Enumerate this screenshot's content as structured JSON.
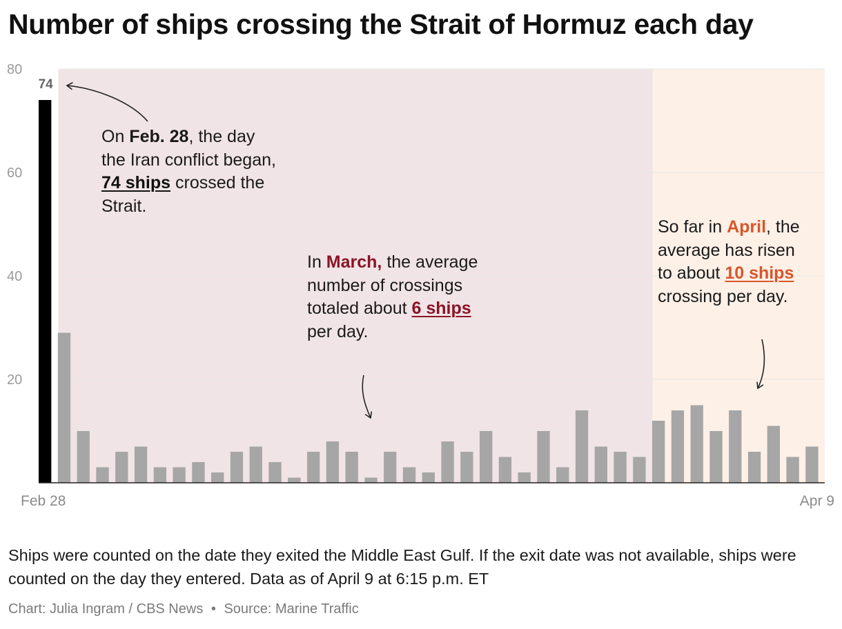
{
  "title": "Number of ships crossing the Strait of Hormuz each day",
  "annotations": {
    "feb": {
      "t1": "On ",
      "b1": "Feb. 28",
      "t2": ", the day the Iran conflict began, ",
      "b2": "74 ships",
      "t3": " crossed the Strait."
    },
    "march": {
      "t1": "In ",
      "b1": "March,",
      "t2": " the average number of crossings totaled about ",
      "b2": "6 ships",
      "t3": " per day."
    },
    "april": {
      "t1": "So far in ",
      "b1": "April",
      "t2": ", the average has risen to about ",
      "b2": "10 ships",
      "t3": " crossing per day."
    }
  },
  "footer": {
    "note": "Ships were counted on the date they exited the Middle East Gulf. If the exit date was not available, ships were counted on the day they entered. Data as of April 9 at 6:15 p.m. ET",
    "credit": "Chart: Julia Ingram / CBS News",
    "separator": "•",
    "source": "Source: Marine Traffic"
  },
  "colors": {
    "highlight_bar": "#000000",
    "bar": "#a6a6a6",
    "march_band": "#f1e4e6",
    "april_band": "#fdf0e7",
    "march_text": "#8a1426",
    "april_text": "#d8562a"
  },
  "chart_data": {
    "type": "bar",
    "x_start": "Feb 28",
    "x_end": "Apr 9",
    "x_tick_labels": [
      "Feb 28",
      "Apr 9"
    ],
    "ylim": [
      0,
      80
    ],
    "yticks": [
      20,
      40,
      60,
      80
    ],
    "grid": true,
    "data_label": {
      "index": 0,
      "text": "74"
    },
    "bands": [
      {
        "name": "March",
        "from_index": 1,
        "to_index": 31
      },
      {
        "name": "April",
        "from_index": 32,
        "to_index": 40
      }
    ],
    "values": [
      74,
      29,
      10,
      3,
      6,
      7,
      3,
      3,
      4,
      2,
      6,
      7,
      4,
      1,
      6,
      8,
      6,
      1,
      6,
      3,
      2,
      8,
      6,
      10,
      5,
      2,
      10,
      3,
      14,
      7,
      6,
      5,
      12,
      14,
      15,
      10,
      14,
      6,
      11,
      5,
      7
    ]
  }
}
